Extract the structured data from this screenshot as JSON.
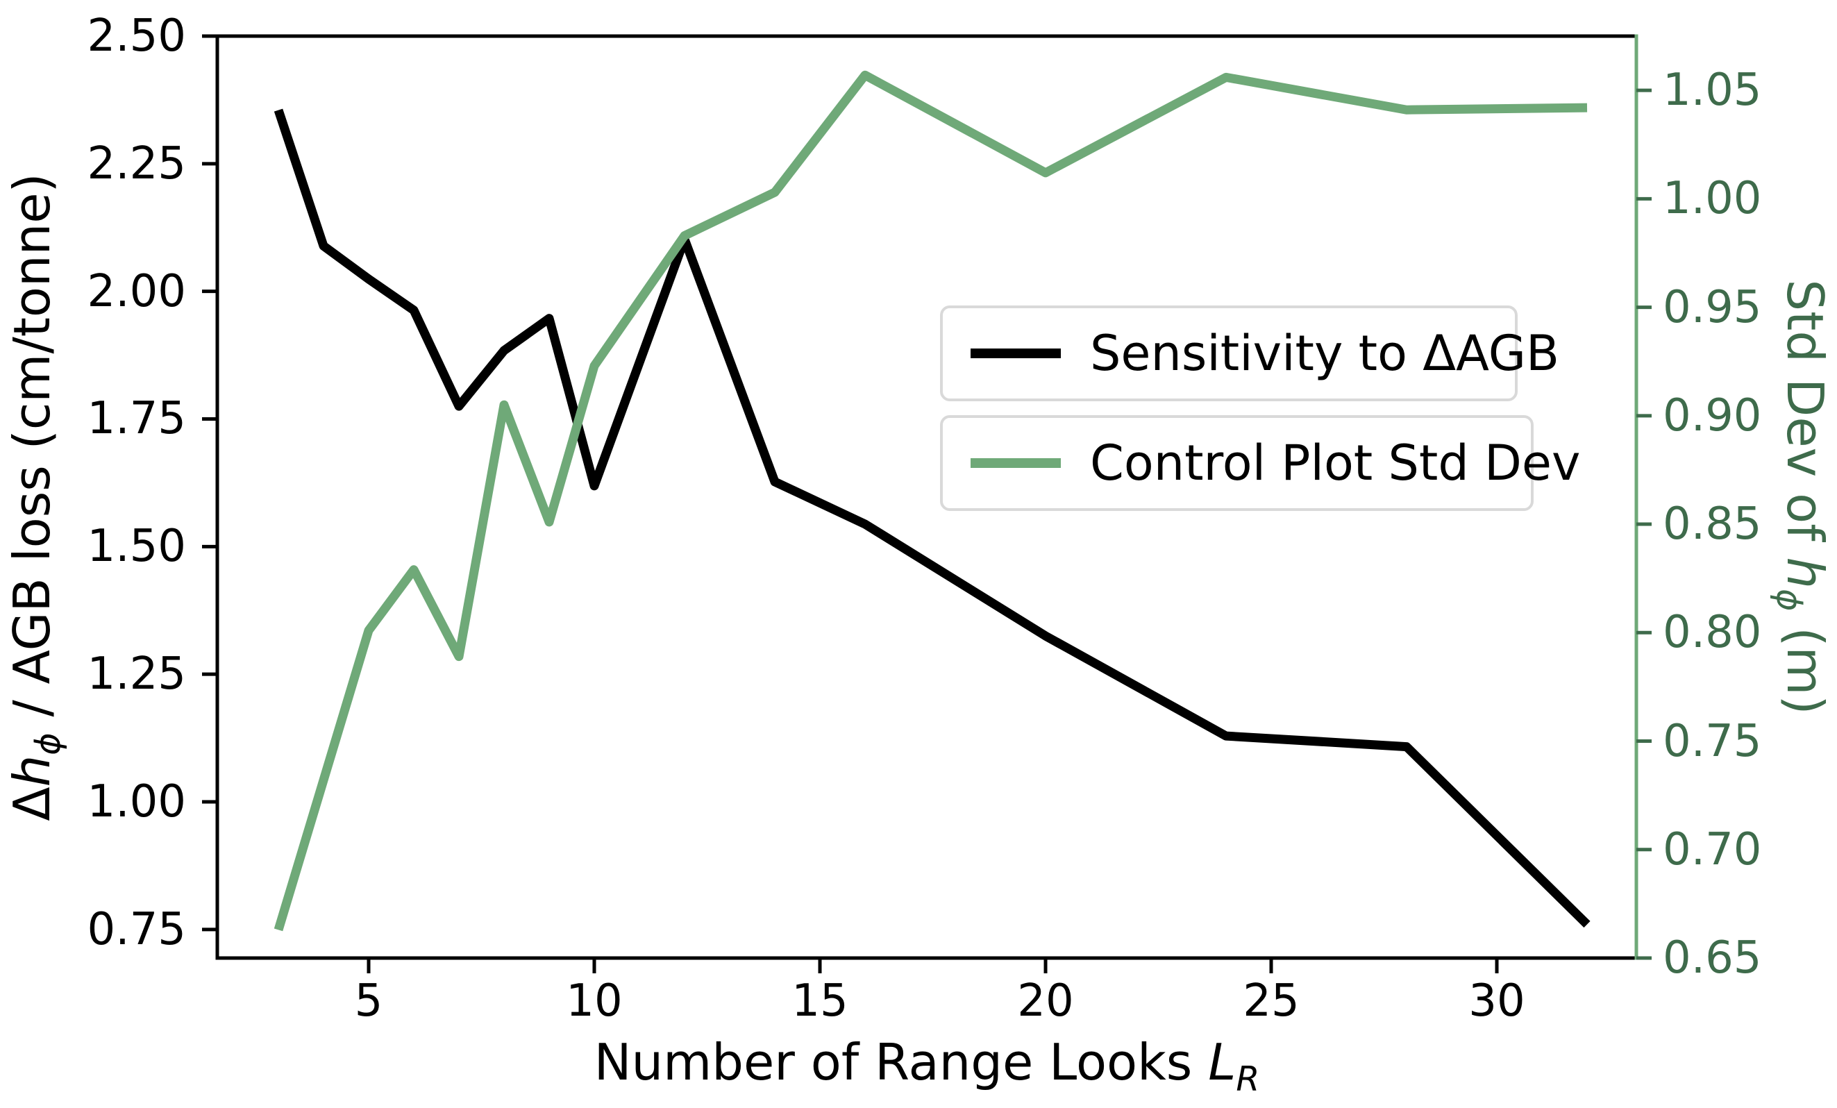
{
  "chart_data": {
    "type": "line",
    "title": "",
    "x": [
      3,
      4,
      5,
      6,
      7,
      8,
      9,
      10,
      12,
      14,
      16,
      20,
      24,
      28,
      32
    ],
    "series": [
      {
        "name": "Sensitivity to ΔAGB",
        "axis": "left",
        "color": "#000000",
        "values": [
          2.355,
          2.089,
          2.024,
          1.963,
          1.775,
          1.884,
          1.947,
          1.619,
          2.102,
          1.627,
          1.544,
          1.325,
          1.129,
          1.108,
          0.76
        ]
      },
      {
        "name": "Control Plot Std Dev",
        "axis": "right",
        "color": "#6FA978",
        "values": [
          0.663,
          0.732,
          0.801,
          0.829,
          0.789,
          0.905,
          0.851,
          0.923,
          0.983,
          1.003,
          1.057,
          1.012,
          1.056,
          1.041,
          1.042
        ]
      }
    ],
    "xlabel": "Number of Range Looks L_R",
    "ylabel": "Δh_ϕ / AGB loss (cm/tonne)",
    "ylabel_right": "Std Dev of h_ϕ (m)",
    "xlim": [
      1.646,
      33.092
    ],
    "ylim_left": [
      0.694,
      2.5
    ],
    "ylim_right": [
      0.65,
      1.075
    ],
    "x_ticks": {
      "values": [
        5,
        10,
        15,
        20,
        25,
        30
      ],
      "labels": [
        "5",
        "10",
        "15",
        "20",
        "25",
        "30"
      ]
    },
    "y_left_ticks": {
      "values": [
        0.75,
        1.0,
        1.25,
        1.5,
        1.75,
        2.0,
        2.25,
        2.5
      ],
      "labels": [
        "0.75",
        "1.00",
        "1.25",
        "1.50",
        "1.75",
        "2.00",
        "2.25",
        "2.50"
      ]
    },
    "y_right_ticks": {
      "values": [
        0.65,
        0.7,
        0.75,
        0.8,
        0.85,
        0.9,
        0.95,
        1.0,
        1.05
      ],
      "labels": [
        "0.65",
        "0.70",
        "0.75",
        "0.80",
        "0.85",
        "0.90",
        "0.95",
        "1.00",
        "1.05"
      ]
    },
    "grid": false,
    "legend_position": "two separate stacked boxes, center-right inside plot"
  },
  "labels": {
    "x": {
      "prefix": "Number of Range Looks ",
      "var": "L",
      "sub": "R"
    },
    "y_left": {
      "prefix": "Δ",
      "var": "h",
      "sub": "ϕ",
      "suffix": " / AGB loss (cm/tonne)"
    },
    "y_right": {
      "prefix": "Std Dev of ",
      "var": "h",
      "sub": "ϕ",
      "suffix": " (m)"
    }
  },
  "legend": {
    "items": [
      {
        "label": "Sensitivity to ΔAGB",
        "color": "#000000"
      },
      {
        "label": "Control Plot Std Dev",
        "color": "#6FA978"
      }
    ]
  },
  "colors": {
    "black_axis": "#000000",
    "green_line": "#6FA978",
    "green_spine": "#6FA978",
    "green_tick_and_text": "#3E6B4B",
    "legend_border": "#D9D9D9",
    "background": "#FFFFFF"
  }
}
